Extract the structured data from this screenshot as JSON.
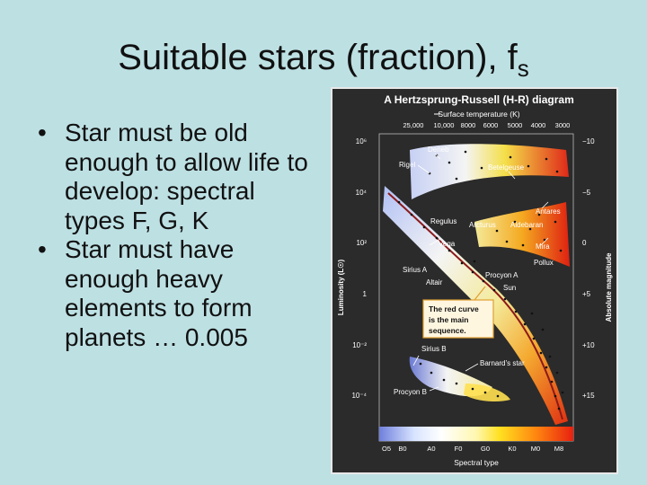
{
  "slide": {
    "title_main": "Suitable stars (fraction), f",
    "title_sub": "s",
    "bullets": [
      "Star must be old enough to allow life to develop: spectral types F, G, K",
      "Star must have enough heavy elements to form planets … 0.005"
    ],
    "bullet_lines": [
      [
        "Star must be old",
        "enough to allow life to",
        "develop: spectral",
        "types F, G, K"
      ],
      [
        "Star must have",
        "enough heavy",
        "elements to form",
        "planets … 0.005"
      ]
    ]
  },
  "diagram": {
    "title": "A Hertzsprung-Russell (H-R) diagram",
    "top_axis_label": "Surface temperature (K)",
    "temperature_ticks": [
      "25,000",
      "10,000",
      "8000",
      "6000",
      "5000",
      "4000",
      "3000"
    ],
    "luminosity_ticks": [
      "10⁶",
      "10⁴",
      "10²",
      "1",
      "10⁻²",
      "10⁻⁴"
    ],
    "magnitude_ticks": [
      "−10",
      "−5",
      "0",
      "+5",
      "+10",
      "+15"
    ],
    "left_axis_label": "Luminosity (L☉)",
    "right_axis_label": "Absolute magnitude",
    "bottom_axis_label": "Spectral type",
    "spectral_types": [
      "O5",
      "B0",
      "A0",
      "F0",
      "G0",
      "K0",
      "M0",
      "M8"
    ],
    "stars": {
      "deneb": "Deneb",
      "rigel": "Rigel",
      "betelgeuse": "Betelgeuse",
      "antares": "Antares",
      "regulus": "Regulus",
      "arcturus": "Arcturus",
      "aldebaran": "Aldebaran",
      "vega": "Vega",
      "mira": "Mira",
      "pollux": "Pollux",
      "sirius_a": "Sirius A",
      "altair": "Altair",
      "procyon_a": "Procyon A",
      "sun": "Sun",
      "sirius_b": "Sirius B",
      "barnards_star": "Barnard’s star",
      "procyon_b": "Procyon B"
    },
    "callout": [
      "The red curve",
      "is the main",
      "sequence."
    ],
    "colors": {
      "background": "#2b2b2b",
      "main_sequence_curve": "#8b1a1a",
      "callout_border": "#e0a030",
      "callout_fill": "#fff6e0"
    }
  }
}
